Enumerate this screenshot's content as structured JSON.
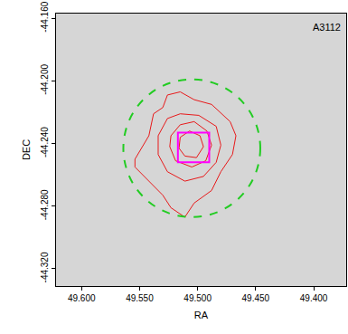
{
  "chart_data": {
    "type": "contour_overlay",
    "x_label": "RA",
    "y_label": "DEC",
    "xlim": [
      49.622,
      49.372
    ],
    "ylim": [
      -44.331,
      -44.157
    ],
    "xticks": [
      {
        "value": 49.6,
        "label": "49.600"
      },
      {
        "value": 49.55,
        "label": "49.550"
      },
      {
        "value": 49.5,
        "label": "49.500"
      },
      {
        "value": 49.45,
        "label": "49.450"
      },
      {
        "value": 49.4,
        "label": "49.400"
      }
    ],
    "yticks": [
      {
        "value": -44.16,
        "label": "-44.160"
      },
      {
        "value": -44.2,
        "label": "-44.200"
      },
      {
        "value": -44.24,
        "label": "-44.240"
      },
      {
        "value": -44.28,
        "label": "-44.280"
      },
      {
        "value": -44.32,
        "label": "-44.320"
      }
    ],
    "grid": false,
    "annotations": [
      {
        "text": "A3112",
        "x": 49.375,
        "y": -44.161
      }
    ],
    "series": [
      {
        "type": "line",
        "color": "#e8191a",
        "x": [
          49.554,
          49.542,
          49.538,
          49.53,
          49.526,
          49.515,
          49.503,
          49.488,
          49.472,
          49.467,
          49.47,
          49.48,
          49.488,
          49.503,
          49.511,
          49.523,
          49.53,
          49.542,
          49.554,
          49.554
        ],
        "y": [
          -44.25,
          -44.235,
          -44.221,
          -44.217,
          -44.209,
          -44.207,
          -44.212,
          -44.215,
          -44.226,
          -44.235,
          -44.247,
          -44.258,
          -44.27,
          -44.278,
          -44.287,
          -44.281,
          -44.273,
          -44.264,
          -44.255,
          -44.25
        ]
      },
      {
        "type": "line",
        "color": "#e8191a",
        "x": [
          49.534,
          49.526,
          49.515,
          49.499,
          49.484,
          49.48,
          49.484,
          49.495,
          49.511,
          49.526,
          49.534,
          49.534
        ],
        "y": [
          -44.235,
          -44.224,
          -44.221,
          -44.222,
          -44.229,
          -44.241,
          -44.252,
          -44.261,
          -44.264,
          -44.258,
          -44.247,
          -44.235
        ]
      },
      {
        "type": "line",
        "color": "#e8191a",
        "x": [
          49.523,
          49.515,
          49.503,
          49.492,
          49.488,
          49.493,
          49.505,
          49.519,
          49.524,
          49.523
        ],
        "y": [
          -44.235,
          -44.228,
          -44.226,
          -44.232,
          -44.241,
          -44.251,
          -44.255,
          -44.251,
          -44.242,
          -44.235
        ]
      },
      {
        "type": "line",
        "color": "#e8191a",
        "x": [
          49.515,
          49.507,
          49.498,
          49.495,
          49.501,
          49.511,
          49.516,
          49.515
        ],
        "y": [
          -44.236,
          -44.232,
          -44.235,
          -44.242,
          -44.249,
          -44.248,
          -44.243,
          -44.236
        ]
      }
    ],
    "circle": {
      "color": "#22cc22",
      "line_style": "dash",
      "x": [
        49.564,
        49.446
      ],
      "y": [
        -44.287,
        -44.199
      ]
    },
    "box": {
      "color": "#ff00ff",
      "x": [
        49.517,
        49.49
      ],
      "y": [
        -44.252,
        -44.233
      ]
    }
  }
}
